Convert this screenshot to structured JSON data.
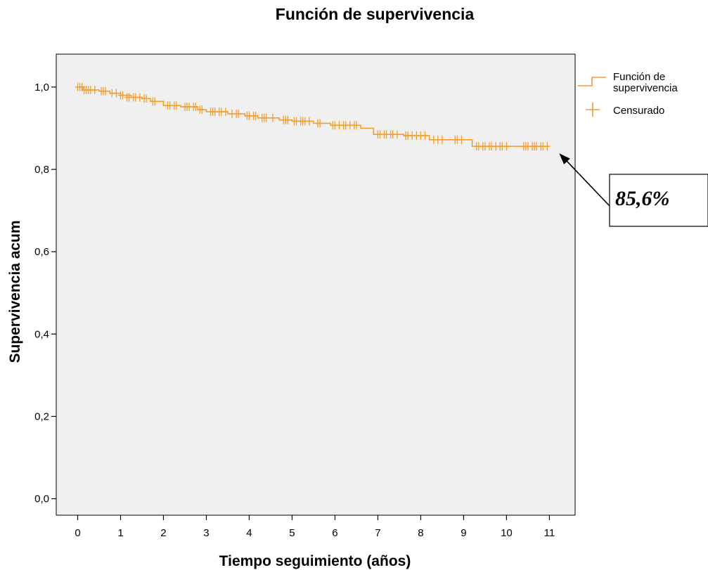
{
  "chart_data": {
    "type": "line",
    "title": "Función de supervivencia",
    "xlabel": "Tiempo seguimiento (años)",
    "ylabel": "Supervivencia acum",
    "xlim": [
      -0.5,
      11.6
    ],
    "ylim": [
      -0.04,
      1.08
    ],
    "x_ticks": [
      0,
      1,
      2,
      3,
      4,
      5,
      6,
      7,
      8,
      9,
      10,
      11
    ],
    "x_tick_labels": [
      "0",
      "1",
      "2",
      "3",
      "4",
      "5",
      "6",
      "7",
      "8",
      "9",
      "10",
      "11"
    ],
    "y_ticks": [
      0.0,
      0.2,
      0.4,
      0.6,
      0.8,
      1.0
    ],
    "y_tick_labels": [
      "0,0",
      "0,2",
      "0,4",
      "0,6",
      "0,8",
      "1,0"
    ],
    "grid": false,
    "legend_position": "right-top",
    "colors": {
      "series": "#f29d2e",
      "plot_background": "#f0f0f0",
      "axis": "#000000"
    },
    "series": [
      {
        "name": "Función de supervivencia",
        "step": true,
        "x": [
          0,
          0.12,
          0.5,
          0.75,
          1.0,
          1.25,
          1.5,
          1.7,
          2.0,
          2.4,
          2.8,
          3.0,
          3.5,
          3.9,
          4.2,
          4.7,
          5.0,
          5.5,
          5.9,
          6.6,
          6.9,
          7.6,
          8.2,
          9.2,
          11.0
        ],
        "y": [
          1.0,
          0.993,
          0.99,
          0.985,
          0.98,
          0.975,
          0.972,
          0.965,
          0.955,
          0.952,
          0.945,
          0.94,
          0.935,
          0.93,
          0.925,
          0.92,
          0.917,
          0.912,
          0.907,
          0.9,
          0.885,
          0.882,
          0.872,
          0.856,
          0.856
        ]
      },
      {
        "name": "Censurado",
        "marker": "plus",
        "x": [
          0.0,
          0.05,
          0.1,
          0.15,
          0.2,
          0.25,
          0.3,
          0.4,
          0.55,
          0.6,
          0.65,
          0.8,
          0.9,
          1.0,
          1.05,
          1.15,
          1.2,
          1.3,
          1.35,
          1.45,
          1.55,
          1.6,
          1.75,
          1.8,
          2.1,
          2.15,
          2.25,
          2.3,
          2.5,
          2.55,
          2.6,
          2.7,
          2.75,
          2.85,
          2.9,
          3.1,
          3.15,
          3.2,
          3.3,
          3.35,
          3.45,
          3.6,
          3.7,
          3.75,
          3.95,
          4.0,
          4.1,
          4.15,
          4.3,
          4.35,
          4.4,
          4.55,
          4.8,
          4.85,
          4.9,
          5.05,
          5.1,
          5.2,
          5.25,
          5.3,
          5.4,
          5.6,
          5.65,
          5.95,
          6.0,
          6.1,
          6.2,
          6.25,
          6.35,
          6.45,
          6.5,
          7.0,
          7.05,
          7.15,
          7.2,
          7.3,
          7.35,
          7.45,
          7.65,
          7.7,
          7.8,
          7.9,
          8.0,
          8.1,
          8.3,
          8.4,
          8.5,
          8.8,
          8.85,
          8.95,
          9.3,
          9.35,
          9.45,
          9.5,
          9.6,
          9.65,
          9.75,
          9.85,
          9.9,
          10.0,
          10.4,
          10.45,
          10.5,
          10.6,
          10.65,
          10.7,
          10.8,
          10.85,
          10.95
        ],
        "y": [
          1.0,
          1.0,
          1.0,
          0.993,
          0.993,
          0.993,
          0.993,
          0.993,
          0.99,
          0.99,
          0.99,
          0.985,
          0.985,
          0.98,
          0.98,
          0.975,
          0.975,
          0.975,
          0.975,
          0.975,
          0.972,
          0.972,
          0.965,
          0.965,
          0.955,
          0.955,
          0.955,
          0.955,
          0.952,
          0.952,
          0.952,
          0.952,
          0.952,
          0.945,
          0.945,
          0.94,
          0.94,
          0.94,
          0.94,
          0.94,
          0.94,
          0.935,
          0.935,
          0.935,
          0.93,
          0.93,
          0.93,
          0.93,
          0.925,
          0.925,
          0.925,
          0.925,
          0.92,
          0.92,
          0.92,
          0.917,
          0.917,
          0.917,
          0.917,
          0.917,
          0.917,
          0.912,
          0.912,
          0.907,
          0.907,
          0.907,
          0.907,
          0.907,
          0.907,
          0.907,
          0.907,
          0.885,
          0.885,
          0.885,
          0.885,
          0.885,
          0.885,
          0.885,
          0.882,
          0.882,
          0.882,
          0.882,
          0.882,
          0.882,
          0.872,
          0.872,
          0.872,
          0.872,
          0.872,
          0.872,
          0.856,
          0.856,
          0.856,
          0.856,
          0.856,
          0.856,
          0.856,
          0.856,
          0.856,
          0.856,
          0.856,
          0.856,
          0.856,
          0.856,
          0.856,
          0.856,
          0.856,
          0.856,
          0.856
        ]
      }
    ],
    "annotation": {
      "text": "85,6%",
      "x": 11.0,
      "y": 0.856
    }
  }
}
